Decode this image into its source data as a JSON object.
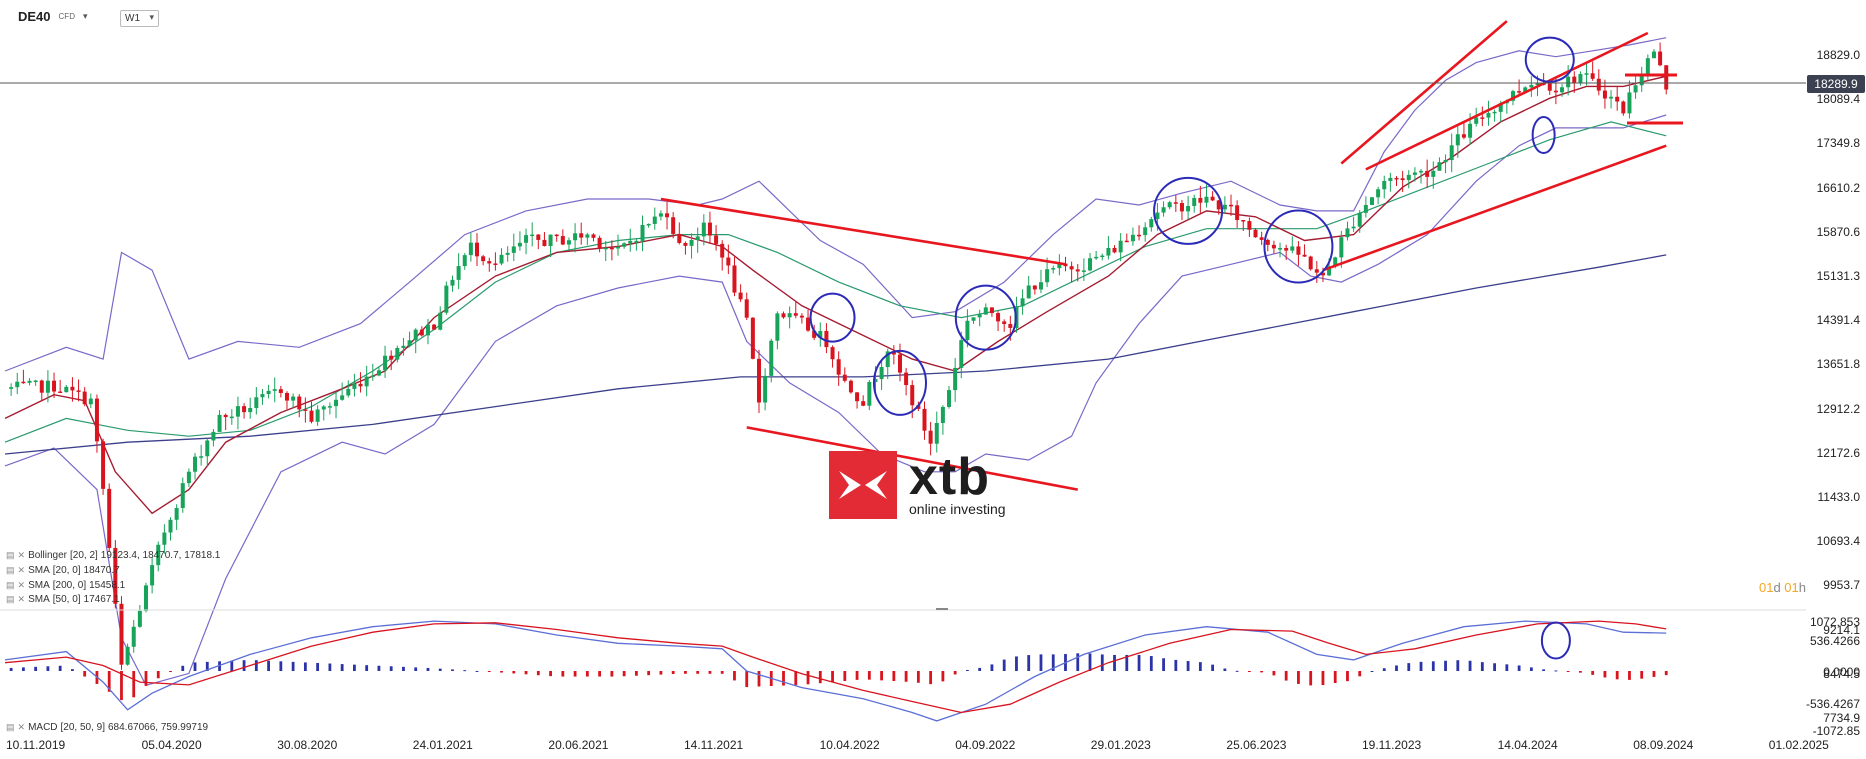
{
  "header": {
    "symbol": "DE40",
    "sub": "CFD",
    "timeframe": "W1"
  },
  "legend": [
    {
      "label": "Bollinger",
      "params": "[20, 2]",
      "value": "19123.4, 18470.7, 17818.1"
    },
    {
      "label": "SMA",
      "params": "[20, 0]",
      "value": "18470.7"
    },
    {
      "label": "SMA",
      "params": "[200, 0]",
      "value": "15458.1"
    },
    {
      "label": "SMA",
      "params": "[50, 0]",
      "value": "17467.1"
    }
  ],
  "macd_legend": {
    "label": "MACD",
    "params": "[20, 50, 9]",
    "value": "684.67066, 759.99719"
  },
  "timeframe_select": {
    "a": "01",
    "b": "d",
    "c": "01",
    "d": "h"
  },
  "logo": {
    "name": "xtb",
    "tagline": "online investing"
  },
  "chart_data": {
    "type": "candlestick",
    "current_price": "18289.9",
    "y_ticks": [
      "18829.0",
      "18089.4",
      "17349.8",
      "16610.2",
      "15870.6",
      "15131.3",
      "14391.4",
      "13651.8",
      "12912.2",
      "12172.6",
      "11433.0",
      "10693.4",
      "9953.7",
      "9214.1",
      "8474.5",
      "7734.9"
    ],
    "macd_ticks": [
      "1072.853",
      "536.4266",
      "0.0000",
      "-536.4267",
      "-1072.85"
    ],
    "x_ticks": [
      "10.11.2019",
      "05.04.2020",
      "30.08.2020",
      "24.01.2021",
      "20.06.2021",
      "14.11.2021",
      "10.04.2022",
      "04.09.2022",
      "29.01.2023",
      "25.06.2023",
      "19.11.2023",
      "14.04.2024",
      "08.09.2024",
      "01.02.2025"
    ],
    "close_path": [
      [
        0,
        13200
      ],
      [
        8,
        13250
      ],
      [
        14,
        13000
      ],
      [
        16,
        11500
      ],
      [
        19,
        8500
      ],
      [
        22,
        9500
      ],
      [
        26,
        10800
      ],
      [
        30,
        11800
      ],
      [
        35,
        12700
      ],
      [
        40,
        12900
      ],
      [
        45,
        13200
      ],
      [
        50,
        12700
      ],
      [
        55,
        13100
      ],
      [
        60,
        13500
      ],
      [
        65,
        14000
      ],
      [
        70,
        14300
      ],
      [
        73,
        15100
      ],
      [
        76,
        15600
      ],
      [
        80,
        15300
      ],
      [
        85,
        15700
      ],
      [
        90,
        15700
      ],
      [
        95,
        15800
      ],
      [
        100,
        15500
      ],
      [
        105,
        16000
      ],
      [
        108,
        16200
      ],
      [
        110,
        15600
      ],
      [
        114,
        15900
      ],
      [
        117,
        15500
      ],
      [
        121,
        14300
      ],
      [
        123,
        13000
      ],
      [
        126,
        14500
      ],
      [
        130,
        14300
      ],
      [
        134,
        14000
      ],
      [
        137,
        13300
      ],
      [
        140,
        13000
      ],
      [
        144,
        13900
      ],
      [
        148,
        13000
      ],
      [
        151,
        12300
      ],
      [
        154,
        13200
      ],
      [
        157,
        14400
      ],
      [
        161,
        14500
      ],
      [
        164,
        14300
      ],
      [
        167,
        14900
      ],
      [
        171,
        15200
      ],
      [
        176,
        15300
      ],
      [
        180,
        15500
      ],
      [
        184,
        15800
      ],
      [
        188,
        16200
      ],
      [
        192,
        16300
      ],
      [
        196,
        16400
      ],
      [
        200,
        16200
      ],
      [
        204,
        15800
      ],
      [
        208,
        15600
      ],
      [
        212,
        15400
      ],
      [
        215,
        15050
      ],
      [
        218,
        15700
      ],
      [
        221,
        16200
      ],
      [
        225,
        16700
      ],
      [
        229,
        16800
      ],
      [
        233,
        16900
      ],
      [
        237,
        17400
      ],
      [
        241,
        17800
      ],
      [
        245,
        18100
      ],
      [
        249,
        18400
      ],
      [
        253,
        18300
      ],
      [
        257,
        18500
      ],
      [
        261,
        18200
      ],
      [
        264,
        17900
      ],
      [
        266,
        18400
      ],
      [
        269,
        18900
      ],
      [
        271,
        18290
      ]
    ],
    "bb_upper": [
      [
        0,
        13500
      ],
      [
        10,
        13900
      ],
      [
        16,
        13700
      ],
      [
        19,
        15500
      ],
      [
        24,
        15200
      ],
      [
        30,
        13700
      ],
      [
        38,
        14000
      ],
      [
        48,
        13900
      ],
      [
        58,
        14300
      ],
      [
        66,
        15000
      ],
      [
        75,
        15800
      ],
      [
        85,
        16200
      ],
      [
        95,
        16400
      ],
      [
        105,
        16400
      ],
      [
        113,
        16300
      ],
      [
        117,
        16400
      ],
      [
        123,
        16700
      ],
      [
        128,
        16200
      ],
      [
        133,
        15700
      ],
      [
        140,
        15300
      ],
      [
        148,
        14400
      ],
      [
        155,
        14500
      ],
      [
        163,
        15000
      ],
      [
        171,
        15800
      ],
      [
        178,
        16400
      ],
      [
        185,
        16300
      ],
      [
        192,
        16500
      ],
      [
        200,
        16700
      ],
      [
        208,
        16300
      ],
      [
        214,
        16200
      ],
      [
        220,
        16200
      ],
      [
        225,
        17200
      ],
      [
        230,
        17900
      ],
      [
        235,
        18400
      ],
      [
        240,
        18700
      ],
      [
        247,
        18900
      ],
      [
        253,
        18800
      ],
      [
        259,
        18900
      ],
      [
        265,
        19000
      ],
      [
        271,
        19120
      ]
    ],
    "bb_middle": [
      [
        0,
        12700
      ],
      [
        8,
        13100
      ],
      [
        13,
        13000
      ],
      [
        18,
        11800
      ],
      [
        24,
        11100
      ],
      [
        30,
        11500
      ],
      [
        36,
        12300
      ],
      [
        45,
        12800
      ],
      [
        55,
        13200
      ],
      [
        62,
        13500
      ],
      [
        70,
        14400
      ],
      [
        80,
        15100
      ],
      [
        90,
        15500
      ],
      [
        100,
        15600
      ],
      [
        110,
        15800
      ],
      [
        117,
        15600
      ],
      [
        122,
        15200
      ],
      [
        130,
        14600
      ],
      [
        138,
        14200
      ],
      [
        148,
        13700
      ],
      [
        155,
        13500
      ],
      [
        162,
        14000
      ],
      [
        170,
        14500
      ],
      [
        180,
        15100
      ],
      [
        188,
        15800
      ],
      [
        196,
        16200
      ],
      [
        204,
        16100
      ],
      [
        212,
        15700
      ],
      [
        220,
        15800
      ],
      [
        228,
        16600
      ],
      [
        236,
        17100
      ],
      [
        244,
        17700
      ],
      [
        252,
        18100
      ],
      [
        258,
        18300
      ],
      [
        264,
        18300
      ],
      [
        271,
        18470
      ]
    ],
    "bb_lower": [
      [
        0,
        11900
      ],
      [
        8,
        12200
      ],
      [
        15,
        11500
      ],
      [
        19,
        9000
      ],
      [
        23,
        8200
      ],
      [
        30,
        8400
      ],
      [
        36,
        10000
      ],
      [
        45,
        11800
      ],
      [
        55,
        12300
      ],
      [
        62,
        12100
      ],
      [
        70,
        12600
      ],
      [
        80,
        14000
      ],
      [
        90,
        14600
      ],
      [
        100,
        14900
      ],
      [
        110,
        15100
      ],
      [
        117,
        15000
      ],
      [
        121,
        14000
      ],
      [
        128,
        13300
      ],
      [
        136,
        12800
      ],
      [
        143,
        12100
      ],
      [
        150,
        11800
      ],
      [
        155,
        11800
      ],
      [
        160,
        12100
      ],
      [
        167,
        12000
      ],
      [
        174,
        12400
      ],
      [
        178,
        13300
      ],
      [
        185,
        14300
      ],
      [
        192,
        15100
      ],
      [
        200,
        15300
      ],
      [
        208,
        15500
      ],
      [
        213,
        15100
      ],
      [
        218,
        15000
      ],
      [
        224,
        15300
      ],
      [
        232,
        15800
      ],
      [
        240,
        16700
      ],
      [
        247,
        17300
      ],
      [
        253,
        17600
      ],
      [
        259,
        17600
      ],
      [
        264,
        17600
      ],
      [
        271,
        17818
      ]
    ],
    "sma50": [
      [
        0,
        12300
      ],
      [
        10,
        12700
      ],
      [
        20,
        12500
      ],
      [
        30,
        12400
      ],
      [
        40,
        12500
      ],
      [
        50,
        12900
      ],
      [
        60,
        13500
      ],
      [
        70,
        14200
      ],
      [
        80,
        15000
      ],
      [
        90,
        15500
      ],
      [
        100,
        15700
      ],
      [
        110,
        15800
      ],
      [
        118,
        15800
      ],
      [
        126,
        15500
      ],
      [
        136,
        15000
      ],
      [
        146,
        14600
      ],
      [
        156,
        14400
      ],
      [
        166,
        14600
      ],
      [
        176,
        15100
      ],
      [
        186,
        15600
      ],
      [
        196,
        15900
      ],
      [
        206,
        15900
      ],
      [
        214,
        15900
      ],
      [
        222,
        16200
      ],
      [
        232,
        16600
      ],
      [
        242,
        17000
      ],
      [
        252,
        17400
      ],
      [
        262,
        17700
      ],
      [
        271,
        17467
      ]
    ],
    "sma200": [
      [
        0,
        12100
      ],
      [
        20,
        12300
      ],
      [
        40,
        12400
      ],
      [
        60,
        12600
      ],
      [
        80,
        12900
      ],
      [
        100,
        13200
      ],
      [
        120,
        13400
      ],
      [
        140,
        13400
      ],
      [
        160,
        13500
      ],
      [
        180,
        13700
      ],
      [
        200,
        14100
      ],
      [
        220,
        14500
      ],
      [
        240,
        14900
      ],
      [
        260,
        15250
      ],
      [
        271,
        15458
      ]
    ],
    "macd_line": [
      [
        0,
        200
      ],
      [
        10,
        350
      ],
      [
        16,
        -200
      ],
      [
        20,
        -700
      ],
      [
        24,
        -400
      ],
      [
        30,
        -100
      ],
      [
        40,
        300
      ],
      [
        50,
        600
      ],
      [
        60,
        800
      ],
      [
        70,
        900
      ],
      [
        80,
        850
      ],
      [
        90,
        650
      ],
      [
        100,
        500
      ],
      [
        110,
        450
      ],
      [
        117,
        400
      ],
      [
        121,
        0
      ],
      [
        130,
        -300
      ],
      [
        140,
        -500
      ],
      [
        148,
        -750
      ],
      [
        152,
        -900
      ],
      [
        160,
        -600
      ],
      [
        168,
        -100
      ],
      [
        176,
        300
      ],
      [
        186,
        650
      ],
      [
        196,
        800
      ],
      [
        206,
        700
      ],
      [
        214,
        300
      ],
      [
        220,
        200
      ],
      [
        228,
        500
      ],
      [
        238,
        800
      ],
      [
        248,
        900
      ],
      [
        258,
        850
      ],
      [
        264,
        700
      ],
      [
        271,
        685
      ]
    ],
    "signal_line": [
      [
        0,
        150
      ],
      [
        10,
        250
      ],
      [
        16,
        100
      ],
      [
        22,
        -200
      ],
      [
        30,
        -250
      ],
      [
        40,
        100
      ],
      [
        50,
        450
      ],
      [
        60,
        700
      ],
      [
        70,
        850
      ],
      [
        80,
        870
      ],
      [
        90,
        750
      ],
      [
        100,
        600
      ],
      [
        110,
        500
      ],
      [
        117,
        450
      ],
      [
        122,
        250
      ],
      [
        130,
        -50
      ],
      [
        140,
        -350
      ],
      [
        148,
        -550
      ],
      [
        156,
        -750
      ],
      [
        164,
        -600
      ],
      [
        172,
        -200
      ],
      [
        180,
        150
      ],
      [
        190,
        500
      ],
      [
        200,
        750
      ],
      [
        210,
        720
      ],
      [
        216,
        500
      ],
      [
        222,
        300
      ],
      [
        230,
        400
      ],
      [
        240,
        650
      ],
      [
        250,
        850
      ],
      [
        260,
        900
      ],
      [
        266,
        850
      ],
      [
        271,
        760
      ]
    ],
    "trendlines": [
      {
        "from": [
          107,
          16400
        ],
        "to": [
          173,
          15300
        ]
      },
      {
        "from": [
          121,
          12550
        ],
        "to": [
          175,
          11500
        ]
      },
      {
        "from": [
          215,
          15200
        ],
        "to": [
          271,
          17300
        ]
      },
      {
        "from": [
          218,
          17000
        ],
        "to": [
          245,
          19400
        ]
      },
      {
        "from": [
          222,
          16900
        ],
        "to": [
          268,
          19200
        ]
      }
    ],
    "circles": [
      {
        "x": 135,
        "y": 14400,
        "rx": 22,
        "ry": 24
      },
      {
        "x": 146,
        "y": 13300,
        "rx": 26,
        "ry": 32
      },
      {
        "x": 160,
        "y": 14400,
        "rx": 30,
        "ry": 32
      },
      {
        "x": 193,
        "y": 16200,
        "rx": 34,
        "ry": 33
      },
      {
        "x": 211,
        "y": 15600,
        "rx": 34,
        "ry": 36
      },
      {
        "x": 252,
        "y": 18750,
        "rx": 24,
        "ry": 22
      },
      {
        "x": 251,
        "y": 17480,
        "rx": 11,
        "ry": 18
      }
    ],
    "macd_circle": {
      "x": 253,
      "y": 550,
      "rx": 14,
      "ry": 18
    }
  }
}
